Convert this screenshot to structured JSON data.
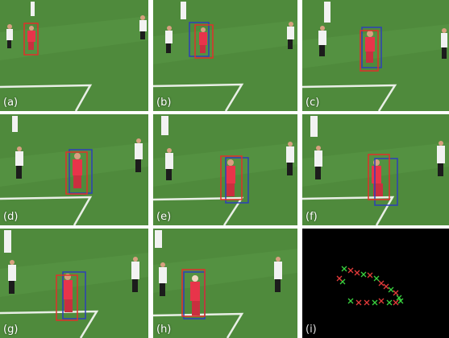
{
  "panels": [
    {
      "label": "(a)"
    },
    {
      "label": "(b)"
    },
    {
      "label": "(c)"
    },
    {
      "label": "(d)"
    },
    {
      "label": "(e)"
    },
    {
      "label": "(f)"
    },
    {
      "label": "(g)"
    },
    {
      "label": "(h)"
    },
    {
      "label": "(i)"
    }
  ],
  "colors": {
    "pitch": "#4f8a3c",
    "pitch_stripe": "#5a9746",
    "pitch_line": "#e9efe6",
    "box_red": "#e0302a",
    "box_blue": "#2d3fb8",
    "player_red": "#e8344a",
    "player_white": "#f2f2f2",
    "player_dark": "#1c1c1c",
    "scatter_bg": "#000000",
    "marker_green": "#39d13f",
    "marker_red": "#e33a3a"
  },
  "icons": [
    "green-x-marker",
    "red-x-marker"
  ]
}
